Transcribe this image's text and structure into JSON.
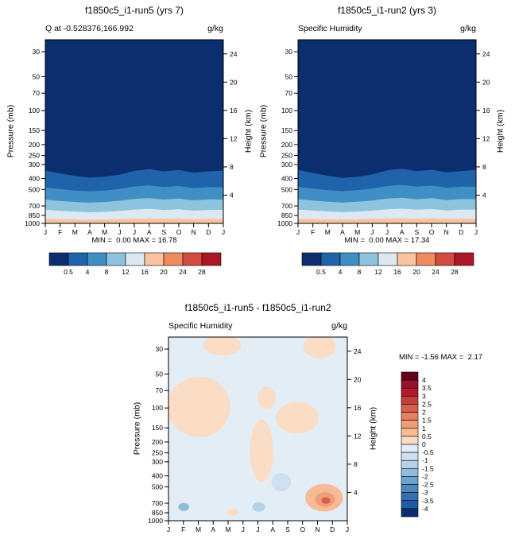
{
  "figure": {
    "background": "#ffffff"
  },
  "chart_data": [
    {
      "id": "run5",
      "type": "contour",
      "title": "f1850c5_i1-run5 (yrs 7)",
      "left_label": "Q at -0.528376,166.992",
      "units": "g/kg",
      "x_ticks": [
        "J",
        "F",
        "M",
        "A",
        "M",
        "J",
        "J",
        "A",
        "S",
        "O",
        "N",
        "D",
        "J"
      ],
      "ylabel": "Pressure (mb)",
      "y_ticks": [
        30,
        50,
        70,
        100,
        150,
        200,
        250,
        300,
        400,
        500,
        700,
        850,
        1000
      ],
      "y_range": [
        23.5,
        1000
      ],
      "y_scale": "log",
      "y2label": "Height (km)",
      "y2_ticks": [
        24,
        20,
        16,
        12,
        8,
        4
      ],
      "y2_range": [
        0,
        26
      ],
      "stats": "MIN =  0.00 MAX = 16.78",
      "min": 0.0,
      "max": 16.78,
      "colorbar": {
        "labels": [
          "0.5",
          "4",
          "8",
          "12",
          "16",
          "20",
          "24",
          "28"
        ],
        "colors": [
          "#0b2e6f",
          "#1f63ab",
          "#3f8ec4",
          "#8ec3de",
          "#dce9f2",
          "#f9c39f",
          "#f08b5e",
          "#d24b40",
          "#ab1726"
        ]
      },
      "bands": [
        {
          "level": 0.5,
          "pressures": [
            340,
            360,
            380,
            392,
            384,
            370,
            342,
            330,
            346,
            336,
            356,
            346,
            340
          ]
        },
        {
          "level": 4,
          "pressures": [
            480,
            496,
            512,
            520,
            512,
            496,
            470,
            460,
            476,
            466,
            486,
            476,
            480
          ]
        },
        {
          "level": 8,
          "pressures": [
            615,
            632,
            646,
            655,
            646,
            630,
            606,
            596,
            614,
            602,
            624,
            612,
            615
          ]
        },
        {
          "level": 12,
          "pressures": [
            758,
            772,
            788,
            798,
            790,
            774,
            754,
            744,
            760,
            750,
            770,
            760,
            758
          ]
        },
        {
          "level": 16,
          "pressures": [
            912,
            918,
            924,
            928,
            922,
            916,
            908,
            904,
            912,
            906,
            916,
            910,
            912
          ]
        }
      ]
    },
    {
      "id": "run2",
      "type": "contour",
      "title": "f1850c5_i1-run2 (yrs 3)",
      "left_label": "Specific Humidity",
      "units": "g/kg",
      "x_ticks": [
        "J",
        "F",
        "M",
        "A",
        "M",
        "J",
        "J",
        "A",
        "S",
        "O",
        "N",
        "D",
        "J"
      ],
      "ylabel": "Pressure (mb)",
      "y_ticks": [
        30,
        50,
        70,
        100,
        150,
        200,
        250,
        300,
        400,
        500,
        700,
        850,
        1000
      ],
      "y_range": [
        23.5,
        1000
      ],
      "y_scale": "log",
      "y2label": "Height (km)",
      "y2_ticks": [
        24,
        20,
        16,
        12,
        8,
        4
      ],
      "y2_range": [
        0,
        26
      ],
      "stats": "MIN =  0.00 MAX = 17.34",
      "min": 0.0,
      "max": 17.34,
      "colorbar": {
        "labels": [
          "0.5",
          "4",
          "8",
          "12",
          "16",
          "20",
          "24",
          "28"
        ],
        "colors": [
          "#0b2e6f",
          "#1f63ab",
          "#3f8ec4",
          "#8ec3de",
          "#dce9f2",
          "#f9c39f",
          "#f08b5e",
          "#d24b40",
          "#ab1726"
        ]
      },
      "bands": [
        {
          "level": 0.5,
          "pressures": [
            336,
            356,
            378,
            395,
            386,
            368,
            338,
            328,
            344,
            334,
            352,
            344,
            336
          ]
        },
        {
          "level": 4,
          "pressures": [
            474,
            492,
            508,
            518,
            508,
            492,
            466,
            456,
            472,
            462,
            482,
            472,
            474
          ]
        },
        {
          "level": 8,
          "pressures": [
            610,
            628,
            642,
            652,
            642,
            626,
            602,
            592,
            610,
            598,
            620,
            608,
            610
          ]
        },
        {
          "level": 12,
          "pressures": [
            754,
            768,
            784,
            795,
            786,
            770,
            750,
            740,
            756,
            746,
            766,
            756,
            754
          ]
        },
        {
          "level": 16,
          "pressures": [
            908,
            914,
            920,
            925,
            918,
            912,
            904,
            900,
            908,
            902,
            912,
            906,
            908
          ]
        }
      ]
    },
    {
      "id": "diff",
      "type": "contour",
      "title": "f1850c5_i1-run5 - f1850c5_i1-run2",
      "left_label": "Specific Humidity",
      "units": "g/kg",
      "x_ticks": [
        "J",
        "F",
        "M",
        "A",
        "M",
        "J",
        "J",
        "A",
        "S",
        "O",
        "N",
        "D",
        "J"
      ],
      "ylabel": "Pressure (mb)",
      "y_ticks": [
        30,
        50,
        70,
        100,
        150,
        200,
        250,
        300,
        400,
        500,
        700,
        850,
        1000
      ],
      "y_range": [
        23.5,
        1000
      ],
      "y_scale": "log",
      "y2label": "Height (km)",
      "y2_ticks": [
        24,
        20,
        16,
        12,
        8,
        4
      ],
      "y2_range": [
        0,
        26
      ],
      "stats": "MIN = -1.56 MAX =  2.17",
      "min": -1.56,
      "max": 2.17,
      "base_color": "#e3edf6",
      "colorbar": {
        "labels": [
          "4",
          "3.5",
          "3",
          "2.5",
          "2",
          "1.5",
          "1",
          "0.5",
          "0",
          "-0.5",
          "-1",
          "-1.5",
          "-2",
          "-2.5",
          "-3",
          "-3.5",
          "-4"
        ],
        "colors": [
          "#67001f",
          "#97122a",
          "#b2182b",
          "#c53e3d",
          "#d6604d",
          "#e4815f",
          "#ef9d78",
          "#f6ba95",
          "#fbdcc4",
          "#e3edf6",
          "#cfe1f0",
          "#b2d2e7",
          "#8fbcdb",
          "#6aa5cf",
          "#4a8ac1",
          "#3370b1",
          "#1c5ca3",
          "#0b2e6f"
        ]
      },
      "regions": [
        {
          "shape": "ellipse",
          "cx": 0.3,
          "cy": 0.045,
          "rx": 0.105,
          "ry": 0.055,
          "color": "#fbdcc4"
        },
        {
          "shape": "ellipse",
          "cx": 0.845,
          "cy": 0.05,
          "rx": 0.09,
          "ry": 0.065,
          "color": "#fbdcc4"
        },
        {
          "shape": "ellipse",
          "cx": 0.17,
          "cy": 0.38,
          "rx": 0.175,
          "ry": 0.165,
          "color": "#fbdcc4"
        },
        {
          "shape": "ellipse",
          "cx": 0.55,
          "cy": 0.33,
          "rx": 0.05,
          "ry": 0.06,
          "color": "#fbdcc4"
        },
        {
          "shape": "ellipse",
          "cx": 0.52,
          "cy": 0.62,
          "rx": 0.065,
          "ry": 0.17,
          "color": "#fbdcc4"
        },
        {
          "shape": "ellipse",
          "cx": 0.72,
          "cy": 0.44,
          "rx": 0.12,
          "ry": 0.085,
          "color": "#fbdcc4"
        },
        {
          "shape": "ellipse",
          "cx": 0.63,
          "cy": 0.79,
          "rx": 0.055,
          "ry": 0.05,
          "color": "#cfe1f0"
        },
        {
          "shape": "ellipse",
          "cx": 0.87,
          "cy": 0.875,
          "rx": 0.105,
          "ry": 0.075,
          "color": "#f6ba95"
        },
        {
          "shape": "ellipse",
          "cx": 0.875,
          "cy": 0.885,
          "rx": 0.055,
          "ry": 0.04,
          "color": "#ef9d78"
        },
        {
          "shape": "ellipse",
          "cx": 0.88,
          "cy": 0.89,
          "rx": 0.025,
          "ry": 0.018,
          "color": "#d6604d"
        },
        {
          "shape": "ellipse",
          "cx": 0.085,
          "cy": 0.925,
          "rx": 0.03,
          "ry": 0.022,
          "color": "#8fbcdb"
        },
        {
          "shape": "ellipse",
          "cx": 0.505,
          "cy": 0.925,
          "rx": 0.035,
          "ry": 0.026,
          "color": "#b2d2e7"
        },
        {
          "shape": "ellipse",
          "cx": 0.36,
          "cy": 0.955,
          "rx": 0.03,
          "ry": 0.02,
          "color": "#fbdcc4"
        }
      ]
    }
  ]
}
